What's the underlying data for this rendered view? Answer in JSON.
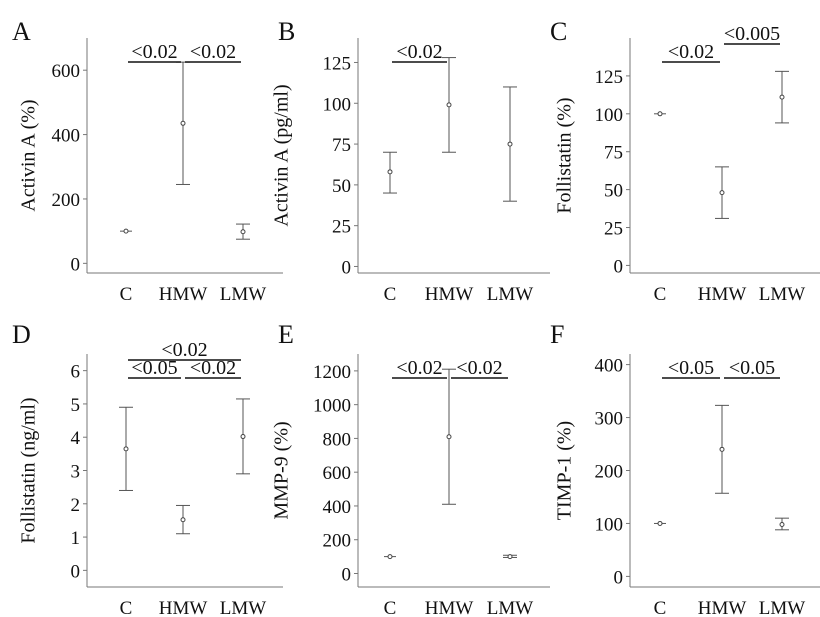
{
  "chart_data": [
    {
      "panel": "A",
      "type": "errorbar",
      "ylabel": "Activin A (%)",
      "categories": [
        "C",
        "HMW",
        "LMW"
      ],
      "yticks": [
        0,
        200,
        400,
        600
      ],
      "ylim": [
        -30,
        700
      ],
      "points": [
        {
          "category": "C",
          "mean": 100,
          "low": 100,
          "high": 100
        },
        {
          "category": "HMW",
          "mean": 435,
          "low": 245,
          "high": 625
        },
        {
          "category": "LMW",
          "mean": 98,
          "low": 75,
          "high": 122
        }
      ],
      "significance": [
        {
          "from": 0,
          "to": 1,
          "label": "<0.02",
          "level": 0
        },
        {
          "from": 1,
          "to": 2,
          "label": "<0.02",
          "level": 0
        }
      ]
    },
    {
      "panel": "B",
      "type": "errorbar",
      "ylabel": "Activin A (pg/ml)",
      "categories": [
        "C",
        "HMW",
        "LMW"
      ],
      "yticks": [
        0,
        25,
        50,
        75,
        100,
        125
      ],
      "ylim": [
        -4,
        140
      ],
      "points": [
        {
          "category": "C",
          "mean": 58,
          "low": 45,
          "high": 70
        },
        {
          "category": "HMW",
          "mean": 99,
          "low": 70,
          "high": 128
        },
        {
          "category": "LMW",
          "mean": 75,
          "low": 40,
          "high": 110
        }
      ],
      "significance": [
        {
          "from": 0,
          "to": 1,
          "label": "<0.02",
          "level": 0
        }
      ]
    },
    {
      "panel": "C",
      "type": "errorbar",
      "ylabel": "Follistatin (%)",
      "categories": [
        "C",
        "HMW",
        "LMW"
      ],
      "yticks": [
        0,
        25,
        50,
        75,
        100,
        125
      ],
      "ylim": [
        -5,
        150
      ],
      "points": [
        {
          "category": "C",
          "mean": 100,
          "low": 100,
          "high": 100
        },
        {
          "category": "HMW",
          "mean": 48,
          "low": 31,
          "high": 65
        },
        {
          "category": "LMW",
          "mean": 111,
          "low": 94,
          "high": 128
        }
      ],
      "significance": [
        {
          "from": 0,
          "to": 1,
          "label": "<0.02",
          "level": 0
        },
        {
          "from": 1,
          "to": 2,
          "label": "<0.005",
          "level": 1
        }
      ]
    },
    {
      "panel": "D",
      "type": "errorbar",
      "ylabel": "Follistatin  (ng/ml)",
      "categories": [
        "C",
        "HMW",
        "LMW"
      ],
      "yticks": [
        0,
        1,
        2,
        3,
        4,
        5,
        6
      ],
      "ylim": [
        -0.5,
        6.5
      ],
      "points": [
        {
          "category": "C",
          "mean": 3.65,
          "low": 2.4,
          "high": 4.9
        },
        {
          "category": "HMW",
          "mean": 1.52,
          "low": 1.1,
          "high": 1.95
        },
        {
          "category": "LMW",
          "mean": 4.02,
          "low": 2.9,
          "high": 5.15
        }
      ],
      "significance": [
        {
          "from": 0,
          "to": 1,
          "label": "<0.05",
          "level": 0
        },
        {
          "from": 1,
          "to": 2,
          "label": "<0.02",
          "level": 0
        },
        {
          "from": 0,
          "to": 2,
          "label": "<0.02",
          "level": 1
        }
      ]
    },
    {
      "panel": "E",
      "type": "errorbar",
      "ylabel": "MMP-9 (%)",
      "categories": [
        "C",
        "HMW",
        "LMW"
      ],
      "yticks": [
        0,
        200,
        400,
        600,
        800,
        1000,
        1200
      ],
      "ylim": [
        -80,
        1300
      ],
      "points": [
        {
          "category": "C",
          "mean": 100,
          "low": 100,
          "high": 100
        },
        {
          "category": "HMW",
          "mean": 810,
          "low": 410,
          "high": 1210
        },
        {
          "category": "LMW",
          "mean": 100,
          "low": 95,
          "high": 108
        }
      ],
      "significance": [
        {
          "from": 0,
          "to": 1,
          "label": "<0.02",
          "level": 0
        },
        {
          "from": 1,
          "to": 2,
          "label": "<0.02",
          "level": 0
        }
      ]
    },
    {
      "panel": "F",
      "type": "errorbar",
      "ylabel": "TIMP-1 (%)",
      "categories": [
        "C",
        "HMW",
        "LMW"
      ],
      "yticks": [
        0,
        100,
        200,
        300,
        400
      ],
      "ylim": [
        -20,
        420
      ],
      "points": [
        {
          "category": "C",
          "mean": 100,
          "low": 100,
          "high": 100
        },
        {
          "category": "HMW",
          "mean": 240,
          "low": 157,
          "high": 323
        },
        {
          "category": "LMW",
          "mean": 98,
          "low": 88,
          "high": 110
        }
      ],
      "significance": [
        {
          "from": 0,
          "to": 1,
          "label": "<0.05",
          "level": 0
        },
        {
          "from": 1,
          "to": 2,
          "label": "<0.05",
          "level": 0
        }
      ]
    }
  ]
}
